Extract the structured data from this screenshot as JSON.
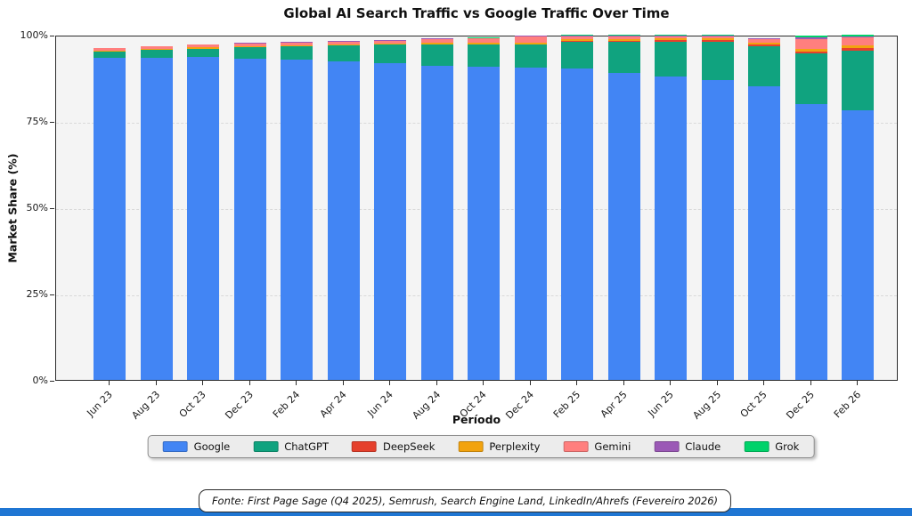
{
  "page": {
    "title": "Global AI Search Traffic vs Google Traffic Over Time"
  },
  "chart_data": {
    "type": "bar",
    "stacked": true,
    "title": "Global AI Search Traffic vs Google Traffic Over Time",
    "xlabel": "Período",
    "ylabel": "Market Share (%)",
    "ylim": [
      0,
      100
    ],
    "grid": "horizontal dashed at 25/50/75",
    "legend_position": "bottom",
    "plot_bg": "#f4f4f4",
    "yticks": [
      {
        "label": "0%",
        "value": 0
      },
      {
        "label": "25%",
        "value": 25
      },
      {
        "label": "50%",
        "value": 50
      },
      {
        "label": "75%",
        "value": 75
      },
      {
        "label": "100%",
        "value": 100
      }
    ],
    "categories": [
      "Jun 23",
      "Aug 23",
      "Oct 23",
      "Dec 23",
      "Feb 24",
      "Apr 24",
      "Jun 24",
      "Aug 24",
      "Oct 24",
      "Dec 24",
      "Feb 25",
      "Apr 25",
      "Jun 25",
      "Aug 25",
      "Oct 25",
      "Dec 25",
      "Feb 26"
    ],
    "series": [
      {
        "name": "Google",
        "color": "#4285F4",
        "values": [
          93.2,
          93.4,
          93.5,
          93.0,
          92.8,
          92.4,
          91.7,
          91.1,
          90.6,
          90.5,
          90.3,
          89.0,
          88.0,
          86.9,
          85.0,
          80.0,
          78.0
        ]
      },
      {
        "name": "ChatGPT",
        "color": "#10A37F",
        "values": [
          2.0,
          2.3,
          2.5,
          3.4,
          3.9,
          4.5,
          5.5,
          6.2,
          6.6,
          6.8,
          7.7,
          8.9,
          10.0,
          11.0,
          11.6,
          14.5,
          17.4
        ]
      },
      {
        "name": "DeepSeek",
        "color": "#E5402C",
        "values": [
          0,
          0,
          0,
          0,
          0,
          0,
          0,
          0,
          0,
          0,
          0.2,
          0.4,
          0.5,
          0.5,
          0.5,
          0.7,
          0.7
        ]
      },
      {
        "name": "Perplexity",
        "color": "#F2A30F",
        "values": [
          0.2,
          0.2,
          0.3,
          0.3,
          0.3,
          0.3,
          0.3,
          0.4,
          0.4,
          0.4,
          0.4,
          0.5,
          0.5,
          0.5,
          0.6,
          0.8,
          0.8
        ]
      },
      {
        "name": "Gemini",
        "color": "#FF7F7E",
        "values": [
          0.7,
          0.7,
          0.8,
          0.8,
          0.8,
          0.7,
          0.8,
          1.0,
          1.3,
          1.8,
          1.0,
          0.8,
          0.6,
          0.7,
          1.0,
          2.8,
          2.3
        ]
      },
      {
        "name": "Claude",
        "color": "#9B59B6",
        "values": [
          0.1,
          0.1,
          0.1,
          0.2,
          0.2,
          0.2,
          0.2,
          0.2,
          0.2,
          0.2,
          0.2,
          0.2,
          0.2,
          0.2,
          0.2,
          0.4,
          0.3
        ]
      },
      {
        "name": "Grok",
        "color": "#00D26A",
        "values": [
          0,
          0,
          0,
          0,
          0,
          0,
          0,
          0,
          0.1,
          0.1,
          0.2,
          0.2,
          0.2,
          0.2,
          0.2,
          0.5,
          0.5
        ]
      }
    ]
  },
  "footer": {
    "source_text": "Fonte: First Page Sage (Q4 2025), Semrush, Search Engine Land, LinkedIn/Ahrefs (Fevereiro 2026)"
  },
  "colors": {
    "bottom_strip": "#1F76D3"
  }
}
